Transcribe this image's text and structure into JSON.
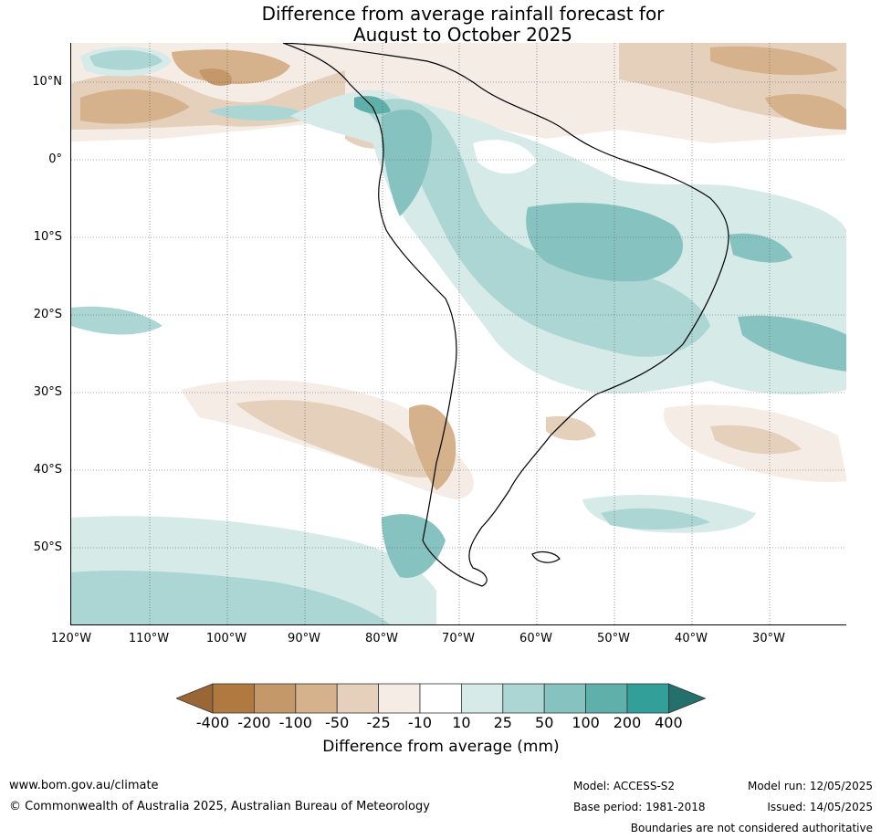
{
  "title": {
    "line1": "Difference from average rainfall forecast for",
    "line2": "August to October 2025"
  },
  "map": {
    "lat_labels": [
      "10°N",
      "0°",
      "10°S",
      "20°S",
      "30°S",
      "40°S",
      "50°S"
    ],
    "lon_labels": [
      "120°W",
      "110°W",
      "100°W",
      "90°W",
      "80°W",
      "70°W",
      "60°W",
      "50°W",
      "40°W",
      "30°W"
    ]
  },
  "legend": {
    "title": "Difference from average (mm)",
    "ticks": [
      "-400",
      "-200",
      "-100",
      "-50",
      "-25",
      "-10",
      "10",
      "25",
      "50",
      "100",
      "200",
      "400"
    ],
    "colors": [
      "#9a6636",
      "#b0793f",
      "#c49868",
      "#d5b18c",
      "#e5d0bb",
      "#f4ece5",
      "#ffffff",
      "#d6eae8",
      "#abd6d3",
      "#86c3c0",
      "#5fb0ab",
      "#339f99",
      "#24706c"
    ]
  },
  "footer": {
    "website": "www.bom.gov.au/climate",
    "copyright": "© Commonwealth of Australia 2025, Australian Bureau of Meteorology",
    "model": "Model: ACCESS-S2",
    "model_run": "Model run: 12/05/2025",
    "base_period": "Base period: 1981-2018",
    "issued": "Issued: 14/05/2025",
    "boundaries_note": "Boundaries are not considered authoritative"
  }
}
